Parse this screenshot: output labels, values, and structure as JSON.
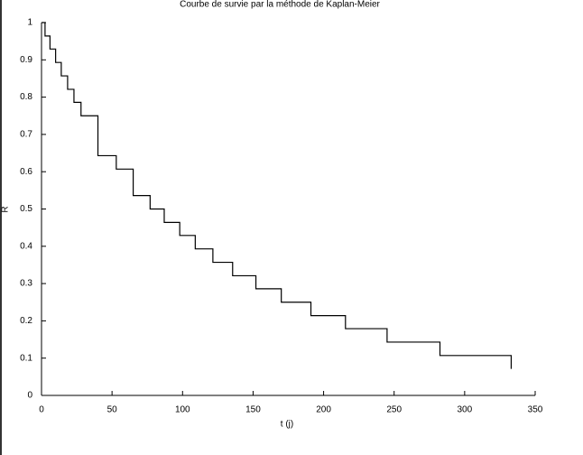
{
  "chart_data": {
    "type": "step",
    "title": "Courbe de survie par la méthode de Kaplan-Meier",
    "xlabel": "t (j)",
    "ylabel": "R",
    "x": [
      0,
      2.5,
      6,
      10,
      14,
      18.5,
      23,
      28,
      40,
      53,
      65,
      77,
      87,
      98,
      109,
      121.5,
      135.5,
      152,
      170,
      191,
      215.5,
      245,
      282.5,
      333
    ],
    "values": [
      1,
      0.964,
      0.929,
      0.893,
      0.857,
      0.821,
      0.786,
      0.75,
      0.643,
      0.607,
      0.536,
      0.5,
      0.464,
      0.429,
      0.393,
      0.357,
      0.321,
      0.286,
      0.25,
      0.214,
      0.179,
      0.143,
      0.107,
      0.071
    ],
    "color": "#000000",
    "xlim": [
      0,
      350
    ],
    "xticks": [
      0,
      50,
      100,
      150,
      200,
      250,
      300,
      350
    ],
    "ylim": [
      0,
      1
    ],
    "yticks": [
      0,
      0.1,
      0.2,
      0.3,
      0.4,
      0.5,
      0.6,
      0.7,
      0.8,
      0.9,
      1
    ],
    "grid": false
  }
}
